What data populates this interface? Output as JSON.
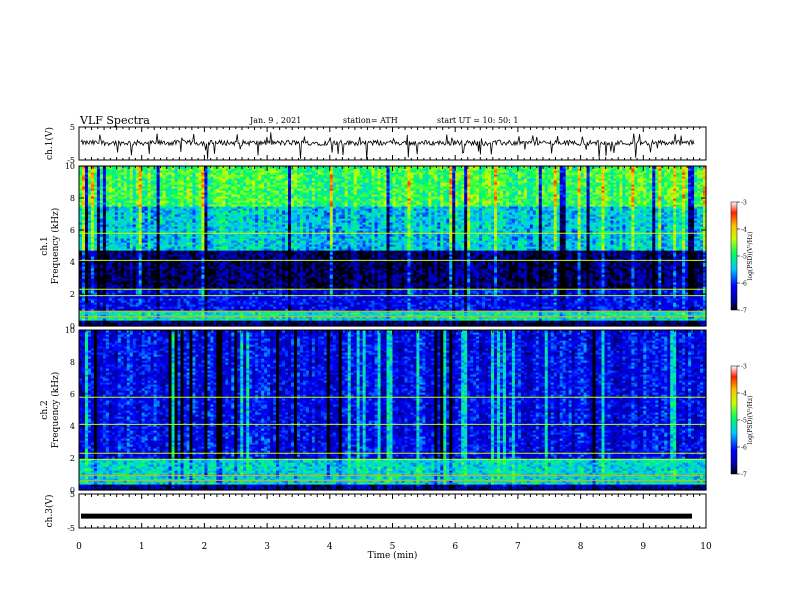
{
  "header": {
    "title": "VLF Spectra",
    "date": "Jan. 9 , 2021",
    "station": "station= ATH",
    "start": "start UT = 10: 50: 1"
  },
  "chart_data": [
    {
      "type": "line",
      "ylabel": "ch.1(V)",
      "ylim": [
        -5,
        5
      ],
      "yticks": [
        "5",
        "-5"
      ],
      "xlim": [
        0,
        10
      ],
      "description": "noisy waveform near 0 V with downward spikes",
      "baseline": 0.2,
      "color": "#000000"
    },
    {
      "type": "heatmap",
      "ylabel": "ch.1\nFrequency (kHz)",
      "ylim": [
        0,
        10
      ],
      "yticks": [
        0,
        2,
        4,
        6,
        8,
        10
      ],
      "xlim": [
        0,
        10
      ],
      "colorbar": {
        "label": "log(PSD)(V²/Hz)",
        "ticks": [
          "-3",
          "-4",
          "-5",
          "-6",
          "-7"
        ],
        "range": [
          -7,
          -3
        ]
      },
      "bands_khz": [
        {
          "from": 0.0,
          "to": 0.4,
          "level": -6.8
        },
        {
          "from": 0.4,
          "to": 1.0,
          "level": -5.2
        },
        {
          "from": 1.0,
          "to": 2.4,
          "level": -6.2
        },
        {
          "from": 2.4,
          "to": 4.8,
          "level": -6.8
        },
        {
          "from": 4.8,
          "to": 7.5,
          "level": -5.4
        },
        {
          "from": 7.5,
          "to": 10.0,
          "level": -4.8
        }
      ]
    },
    {
      "type": "heatmap",
      "ylabel": "ch.2\nFrequency (kHz)",
      "ylim": [
        0,
        10
      ],
      "yticks": [
        0,
        2,
        4,
        6,
        8,
        10
      ],
      "xlim": [
        0,
        10
      ],
      "colorbar": {
        "label": "log(PSD)(V²/Hz)",
        "ticks": [
          "-3",
          "-4",
          "-5",
          "-6",
          "-7"
        ],
        "range": [
          -7,
          -3
        ]
      },
      "bands_khz": [
        {
          "from": 0.0,
          "to": 0.4,
          "level": -6.6
        },
        {
          "from": 0.4,
          "to": 2.0,
          "level": -5.3
        },
        {
          "from": 2.0,
          "to": 10.0,
          "level": -6.2
        }
      ]
    },
    {
      "type": "line",
      "ylabel": "ch.3(V)",
      "ylim": [
        -5,
        5
      ],
      "yticks": [
        "5",
        "-5"
      ],
      "xlim": [
        0,
        10
      ],
      "xlabel": "Time (min)",
      "xticks": [
        0,
        1,
        2,
        3,
        4,
        5,
        6,
        7,
        8,
        9,
        10
      ],
      "description": "flat thick trace near -1.5 V",
      "baseline": -1.5,
      "color": "#000000"
    }
  ]
}
